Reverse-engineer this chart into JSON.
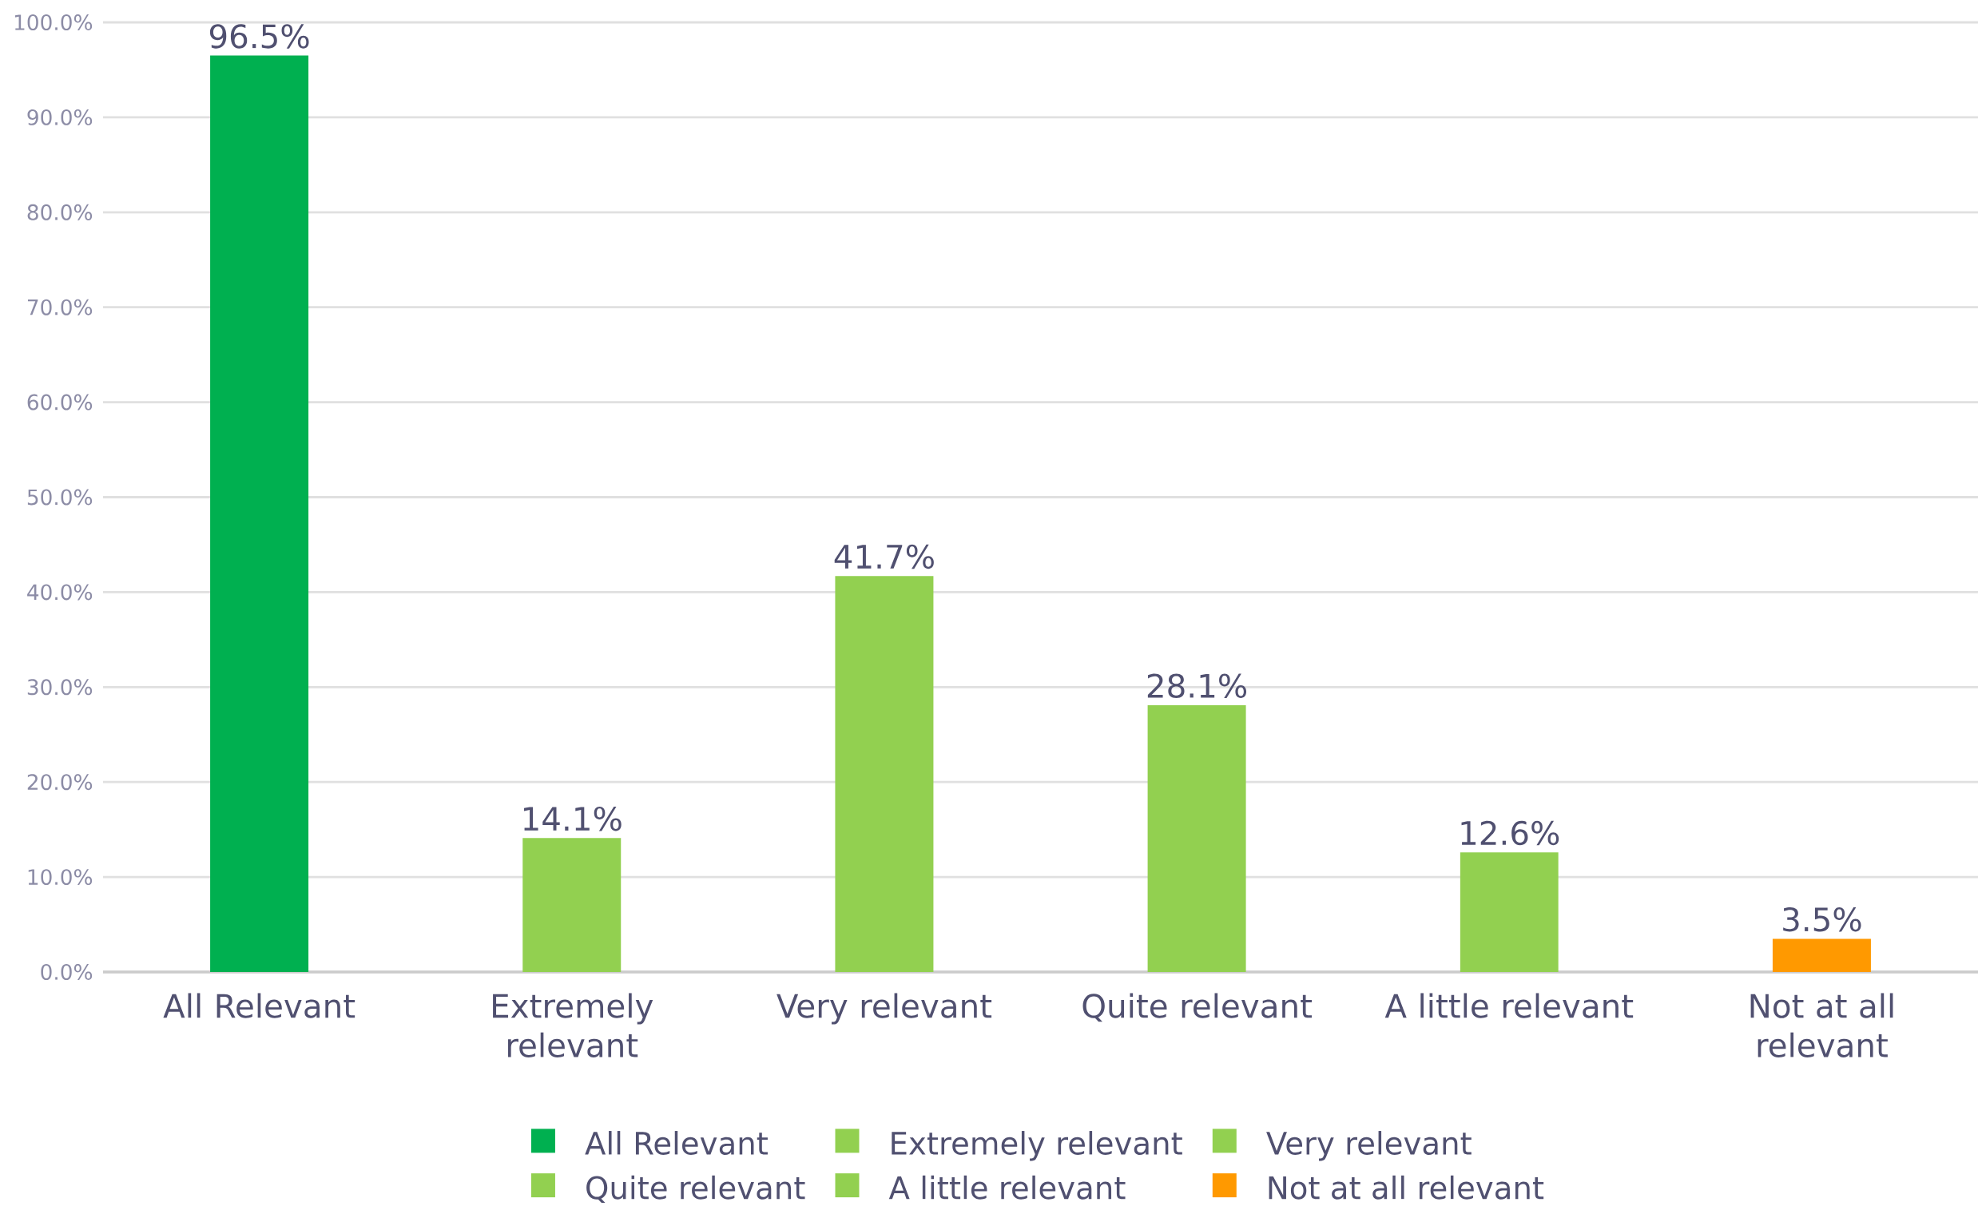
{
  "chart_data": {
    "type": "bar",
    "categories": [
      "All Relevant",
      "Extremely relevant",
      "Very relevant",
      "Quite relevant",
      "A little relevant",
      "Not at all relevant"
    ],
    "series": [
      {
        "name": "All Relevant",
        "color": "#00b050",
        "values": [
          96.5,
          null,
          null,
          null,
          null,
          null
        ],
        "value_labels": [
          "96.5%",
          null,
          null,
          null,
          null,
          null
        ]
      },
      {
        "name": "Extremely relevant",
        "color": "#92d050",
        "values": [
          null,
          14.1,
          null,
          null,
          null,
          null
        ],
        "value_labels": [
          null,
          "14.1%",
          null,
          null,
          null,
          null
        ]
      },
      {
        "name": "Very relevant",
        "color": "#92d050",
        "values": [
          null,
          null,
          41.7,
          null,
          null,
          null
        ],
        "value_labels": [
          null,
          null,
          "41.7%",
          null,
          null,
          null
        ]
      },
      {
        "name": "Quite relevant",
        "color": "#92d050",
        "values": [
          null,
          null,
          null,
          28.1,
          null,
          null
        ],
        "value_labels": [
          null,
          null,
          null,
          "28.1%",
          null,
          null
        ]
      },
      {
        "name": "A little relevant",
        "color": "#92d050",
        "values": [
          null,
          null,
          null,
          null,
          12.6,
          null
        ],
        "value_labels": [
          null,
          null,
          null,
          null,
          "12.6%",
          null
        ]
      },
      {
        "name": "Not at all relevant",
        "color": "#ff9900",
        "values": [
          null,
          null,
          null,
          null,
          null,
          3.5
        ],
        "value_labels": [
          null,
          null,
          null,
          null,
          null,
          "3.5%"
        ]
      }
    ],
    "ylim": [
      0,
      100
    ],
    "yticks": [
      {
        "value": 0,
        "label": "0.0%"
      },
      {
        "value": 10,
        "label": "10.0%"
      },
      {
        "value": 20,
        "label": "20.0%"
      },
      {
        "value": 30,
        "label": "30.0%"
      },
      {
        "value": 40,
        "label": "40.0%"
      },
      {
        "value": 50,
        "label": "50.0%"
      },
      {
        "value": 60,
        "label": "60.0%"
      },
      {
        "value": 70,
        "label": "70.0%"
      },
      {
        "value": 80,
        "label": "80.0%"
      },
      {
        "value": 90,
        "label": "90.0%"
      },
      {
        "value": 100,
        "label": "100.0%"
      }
    ],
    "grid": "y",
    "legend": "bottom"
  }
}
